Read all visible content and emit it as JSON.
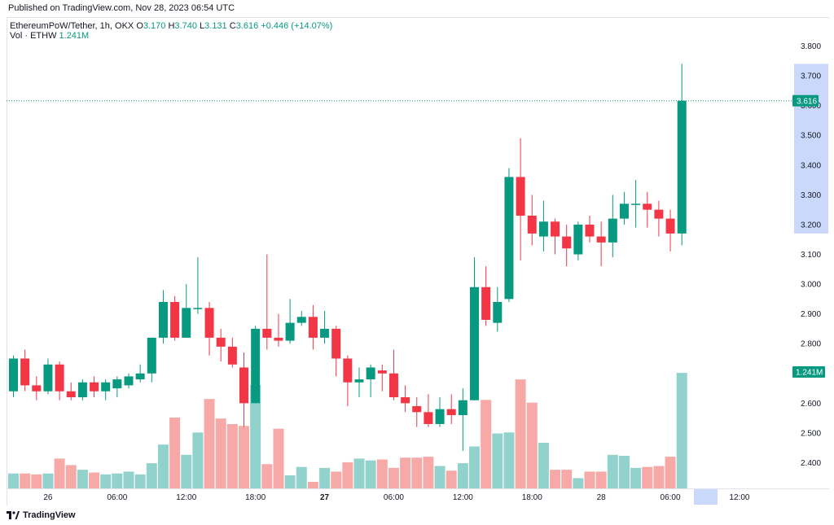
{
  "header": {
    "published": "Published on TradingView.com, Nov 28, 2023 06:54 UTC"
  },
  "legend": {
    "symbol": "EthereumPoW/Tether, 1h, OKX",
    "o_label": "O",
    "o_value": "3.170",
    "h_label": "H",
    "h_value": "3.740",
    "l_label": "L",
    "l_value": "3.131",
    "c_label": "C",
    "c_value": "3.616",
    "change": "+0.446 (+14.07%)",
    "vol_label": "Vol · ETHW",
    "vol_value": "1.241M"
  },
  "footer": {
    "brand": "TradingView"
  },
  "colors": {
    "up": "#089981",
    "down": "#f23645",
    "up_vol": "#92d2cc",
    "down_vol": "#f7a9a7",
    "highlight": "#c9d8fb"
  },
  "chart_data": {
    "type": "candlestick",
    "interval": "1h",
    "y_axis_ticks": [
      "3.800",
      "3.700",
      "3.600",
      "3.500",
      "3.400",
      "3.300",
      "3.200",
      "3.100",
      "3.000",
      "2.900",
      "2.800",
      "2.700",
      "2.600",
      "2.500",
      "2.400"
    ],
    "ylim": [
      2.32,
      3.84
    ],
    "x_axis_labels": [
      {
        "label": "26",
        "index": 3,
        "bold": false
      },
      {
        "label": "06:00",
        "index": 9,
        "bold": false
      },
      {
        "label": "12:00",
        "index": 15,
        "bold": false
      },
      {
        "label": "18:00",
        "index": 21,
        "bold": false
      },
      {
        "label": "27",
        "index": 27,
        "bold": true
      },
      {
        "label": "06:00",
        "index": 33,
        "bold": false
      },
      {
        "label": "12:00",
        "index": 39,
        "bold": false
      },
      {
        "label": "18:00",
        "index": 45,
        "bold": false
      },
      {
        "label": "28",
        "index": 51,
        "bold": false
      },
      {
        "label": "06:00",
        "index": 57,
        "bold": false
      },
      {
        "label": "12:00",
        "index": 63,
        "bold": false
      }
    ],
    "last_price": "3.616",
    "last_price_value": 3.616,
    "last_volume_label": "1.241M",
    "last_volume_value": 1.241,
    "highlight_range": [
      3.17,
      3.74
    ],
    "candles": [
      {
        "o": 2.64,
        "h": 2.76,
        "l": 2.62,
        "c": 2.75
      },
      {
        "o": 2.75,
        "h": 2.78,
        "l": 2.64,
        "c": 2.66
      },
      {
        "o": 2.66,
        "h": 2.69,
        "l": 2.61,
        "c": 2.64
      },
      {
        "o": 2.64,
        "h": 2.75,
        "l": 2.63,
        "c": 2.73
      },
      {
        "o": 2.73,
        "h": 2.74,
        "l": 2.61,
        "c": 2.64
      },
      {
        "o": 2.64,
        "h": 2.67,
        "l": 2.61,
        "c": 2.62
      },
      {
        "o": 2.62,
        "h": 2.68,
        "l": 2.61,
        "c": 2.67
      },
      {
        "o": 2.67,
        "h": 2.69,
        "l": 2.62,
        "c": 2.64
      },
      {
        "o": 2.64,
        "h": 2.68,
        "l": 2.61,
        "c": 2.67
      },
      {
        "o": 2.65,
        "h": 2.69,
        "l": 2.62,
        "c": 2.68
      },
      {
        "o": 2.66,
        "h": 2.7,
        "l": 2.65,
        "c": 2.69
      },
      {
        "o": 2.68,
        "h": 2.73,
        "l": 2.67,
        "c": 2.7
      },
      {
        "o": 2.7,
        "h": 2.82,
        "l": 2.67,
        "c": 2.82
      },
      {
        "o": 2.82,
        "h": 2.98,
        "l": 2.8,
        "c": 2.94
      },
      {
        "o": 2.94,
        "h": 2.96,
        "l": 2.81,
        "c": 2.82
      },
      {
        "o": 2.82,
        "h": 3.0,
        "l": 2.82,
        "c": 2.92
      },
      {
        "o": 2.92,
        "h": 3.09,
        "l": 2.9,
        "c": 2.92
      },
      {
        "o": 2.92,
        "h": 2.94,
        "l": 2.76,
        "c": 2.82
      },
      {
        "o": 2.82,
        "h": 2.85,
        "l": 2.74,
        "c": 2.79
      },
      {
        "o": 2.79,
        "h": 2.82,
        "l": 2.72,
        "c": 2.73
      },
      {
        "o": 2.72,
        "h": 2.77,
        "l": 2.52,
        "c": 2.6
      },
      {
        "o": 2.6,
        "h": 2.86,
        "l": 2.6,
        "c": 2.85
      },
      {
        "o": 2.85,
        "h": 3.1,
        "l": 2.78,
        "c": 2.82
      },
      {
        "o": 2.82,
        "h": 2.9,
        "l": 2.79,
        "c": 2.81
      },
      {
        "o": 2.81,
        "h": 2.95,
        "l": 2.8,
        "c": 2.87
      },
      {
        "o": 2.87,
        "h": 2.91,
        "l": 2.86,
        "c": 2.89
      },
      {
        "o": 2.89,
        "h": 2.93,
        "l": 2.78,
        "c": 2.82
      },
      {
        "o": 2.82,
        "h": 2.91,
        "l": 2.8,
        "c": 2.85
      },
      {
        "o": 2.85,
        "h": 2.86,
        "l": 2.69,
        "c": 2.75
      },
      {
        "o": 2.75,
        "h": 2.76,
        "l": 2.59,
        "c": 2.67
      },
      {
        "o": 2.67,
        "h": 2.72,
        "l": 2.62,
        "c": 2.68
      },
      {
        "o": 2.68,
        "h": 2.73,
        "l": 2.62,
        "c": 2.72
      },
      {
        "o": 2.71,
        "h": 2.73,
        "l": 2.64,
        "c": 2.7
      },
      {
        "o": 2.7,
        "h": 2.78,
        "l": 2.61,
        "c": 2.62
      },
      {
        "o": 2.62,
        "h": 2.66,
        "l": 2.57,
        "c": 2.6
      },
      {
        "o": 2.59,
        "h": 2.62,
        "l": 2.52,
        "c": 2.57
      },
      {
        "o": 2.57,
        "h": 2.63,
        "l": 2.52,
        "c": 2.53
      },
      {
        "o": 2.53,
        "h": 2.62,
        "l": 2.52,
        "c": 2.58
      },
      {
        "o": 2.58,
        "h": 2.63,
        "l": 2.53,
        "c": 2.56
      },
      {
        "o": 2.56,
        "h": 2.65,
        "l": 2.44,
        "c": 2.61
      },
      {
        "o": 2.61,
        "h": 3.09,
        "l": 2.61,
        "c": 2.99
      },
      {
        "o": 2.99,
        "h": 3.06,
        "l": 2.86,
        "c": 2.88
      },
      {
        "o": 2.87,
        "h": 2.99,
        "l": 2.84,
        "c": 2.94
      },
      {
        "o": 2.95,
        "h": 3.39,
        "l": 2.94,
        "c": 3.36
      },
      {
        "o": 3.36,
        "h": 3.49,
        "l": 3.08,
        "c": 3.23
      },
      {
        "o": 3.23,
        "h": 3.3,
        "l": 3.13,
        "c": 3.17
      },
      {
        "o": 3.16,
        "h": 3.28,
        "l": 3.11,
        "c": 3.21
      },
      {
        "o": 3.21,
        "h": 3.22,
        "l": 3.1,
        "c": 3.16
      },
      {
        "o": 3.16,
        "h": 3.2,
        "l": 3.06,
        "c": 3.12
      },
      {
        "o": 3.1,
        "h": 3.21,
        "l": 3.08,
        "c": 3.2
      },
      {
        "o": 3.2,
        "h": 3.23,
        "l": 3.14,
        "c": 3.16
      },
      {
        "o": 3.16,
        "h": 3.21,
        "l": 3.06,
        "c": 3.14
      },
      {
        "o": 3.14,
        "h": 3.3,
        "l": 3.09,
        "c": 3.22
      },
      {
        "o": 3.22,
        "h": 3.31,
        "l": 3.2,
        "c": 3.27
      },
      {
        "o": 3.27,
        "h": 3.35,
        "l": 3.19,
        "c": 3.27
      },
      {
        "o": 3.27,
        "h": 3.31,
        "l": 3.19,
        "c": 3.25
      },
      {
        "o": 3.25,
        "h": 3.28,
        "l": 3.16,
        "c": 3.22
      },
      {
        "o": 3.22,
        "h": 3.25,
        "l": 3.11,
        "c": 3.17
      },
      {
        "o": 3.17,
        "h": 3.74,
        "l": 3.13,
        "c": 3.616
      }
    ],
    "volume_label_ticks": [],
    "volume": [
      0.16,
      0.16,
      0.15,
      0.16,
      0.32,
      0.25,
      0.2,
      0.17,
      0.15,
      0.16,
      0.18,
      0.15,
      0.27,
      0.47,
      0.76,
      0.36,
      0.6,
      0.96,
      0.75,
      0.69,
      0.67,
      1.11,
      0.26,
      0.64,
      0.14,
      0.23,
      0.07,
      0.22,
      0.18,
      0.28,
      0.32,
      0.3,
      0.31,
      0.22,
      0.33,
      0.33,
      0.34,
      0.24,
      0.19,
      0.27,
      0.45,
      0.95,
      0.59,
      0.6,
      1.17,
      0.92,
      0.49,
      0.2,
      0.2,
      0.11,
      0.18,
      0.18,
      0.36,
      0.35,
      0.22,
      0.23,
      0.24,
      0.34,
      1.24
    ]
  }
}
